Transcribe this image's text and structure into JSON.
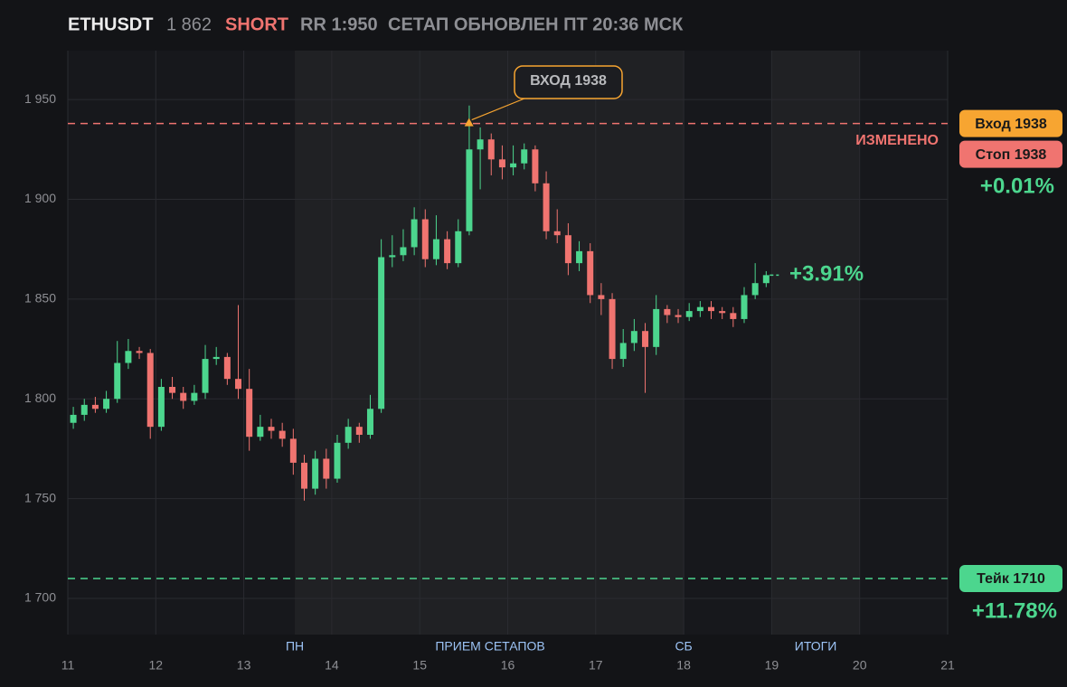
{
  "header": {
    "symbol": "ETHUSDT",
    "price": "1 862",
    "side": "SHORT",
    "rr": "RR 1:950",
    "status": "СЕТАП ОБНОВЛЕН ПТ 20:36 МСК"
  },
  "chart_data": {
    "type": "candlestick",
    "up_color": "#4cd68e",
    "down_color": "#f07470",
    "xlim": [
      11,
      21
    ],
    "xticks": [
      11,
      12,
      13,
      14,
      15,
      16,
      17,
      18,
      19,
      20,
      21
    ],
    "ylim": [
      1682.8,
      1974.5
    ],
    "yticks": [
      {
        "value": 1700,
        "label": "1 700"
      },
      {
        "value": 1750,
        "label": "1 750"
      },
      {
        "value": 1800,
        "label": "1 800"
      },
      {
        "value": 1850,
        "label": "1 850"
      },
      {
        "value": 1900,
        "label": "1 900"
      },
      {
        "value": 1950,
        "label": "1 950"
      }
    ],
    "grid": true,
    "shaded": [
      [
        13.58,
        18
      ],
      [
        19,
        20
      ]
    ],
    "sessions": [
      {
        "label": "ПН",
        "x": 13.58
      },
      {
        "label": "ПРИЕМ СЕТАПОВ",
        "x": 15.8
      },
      {
        "label": "СБ",
        "x": 18
      },
      {
        "label": "ИТОГИ",
        "x": 19.5
      }
    ],
    "x": [
      11.0625,
      11.1875,
      11.3125,
      11.4375,
      11.5625,
      11.6875,
      11.8125,
      11.9375,
      12.0625,
      12.1875,
      12.3125,
      12.4375,
      12.5625,
      12.6875,
      12.8125,
      12.9375,
      13.0625,
      13.1875,
      13.3125,
      13.4375,
      13.5625,
      13.6875,
      13.8125,
      13.9375,
      14.0625,
      14.1875,
      14.3125,
      14.4375,
      14.5625,
      14.6875,
      14.8125,
      14.9375,
      15.0625,
      15.1875,
      15.3125,
      15.4375,
      15.5625,
      15.6875,
      15.8125,
      15.9375,
      16.0625,
      16.1875,
      16.3125,
      16.4375,
      16.5625,
      16.6875,
      16.8125,
      16.9375,
      17.0625,
      17.1875,
      17.3125,
      17.4375,
      17.5625,
      17.6875,
      17.8125,
      17.9375,
      18.0625,
      18.1875,
      18.3125,
      18.4375,
      18.5625,
      18.6875,
      18.8125,
      18.9375
    ],
    "open": [
      1788,
      1792,
      1797,
      1795,
      1800,
      1818,
      1824,
      1823,
      1786,
      1806,
      1803,
      1799,
      1803,
      1820,
      1821,
      1810,
      1805,
      1781,
      1786,
      1784,
      1780,
      1768,
      1755,
      1770,
      1760,
      1778,
      1786,
      1782,
      1795,
      1871,
      1872,
      1876,
      1890,
      1870,
      1880,
      1868,
      1884,
      1925,
      1930,
      1920,
      1916,
      1918,
      1925,
      1908,
      1884,
      1882,
      1868,
      1874,
      1852,
      1850,
      1820,
      1828,
      1834,
      1826,
      1845,
      1842,
      1841,
      1844,
      1846,
      1844,
      1843,
      1840,
      1852,
      1858
    ],
    "high": [
      1796,
      1800,
      1801,
      1804,
      1829,
      1830,
      1826,
      1825,
      1810,
      1811,
      1806,
      1807,
      1827,
      1826,
      1823,
      1847,
      1815,
      1792,
      1790,
      1788,
      1785,
      1772,
      1774,
      1775,
      1782,
      1790,
      1788,
      1802,
      1880,
      1882,
      1885,
      1896,
      1895,
      1892,
      1884,
      1890,
      1947,
      1936,
      1933,
      1927,
      1927,
      1928,
      1927,
      1914,
      1895,
      1888,
      1879,
      1878,
      1858,
      1853,
      1835,
      1840,
      1838,
      1852,
      1847,
      1845,
      1848,
      1849,
      1849,
      1846,
      1846,
      1856,
      1868,
      1864
    ],
    "low": [
      1785,
      1789,
      1793,
      1793,
      1798,
      1815,
      1820,
      1780,
      1784,
      1800,
      1795,
      1797,
      1800,
      1817,
      1807,
      1800,
      1774,
      1779,
      1780,
      1776,
      1762,
      1749,
      1752,
      1755,
      1758,
      1775,
      1778,
      1780,
      1793,
      1866,
      1869,
      1872,
      1866,
      1867,
      1865,
      1866,
      1882,
      1905,
      1912,
      1910,
      1912,
      1915,
      1904,
      1880,
      1878,
      1862,
      1864,
      1848,
      1842,
      1815,
      1816,
      1824,
      1803,
      1822,
      1838,
      1838,
      1839,
      1841,
      1840,
      1840,
      1836,
      1838,
      1850,
      1856
    ],
    "close": [
      1792,
      1797,
      1795,
      1800,
      1818,
      1824,
      1823,
      1786,
      1806,
      1803,
      1799,
      1803,
      1820,
      1821,
      1810,
      1805,
      1781,
      1786,
      1784,
      1780,
      1768,
      1755,
      1770,
      1760,
      1778,
      1786,
      1782,
      1795,
      1871,
      1872,
      1876,
      1890,
      1870,
      1880,
      1868,
      1884,
      1925,
      1930,
      1920,
      1916,
      1918,
      1925,
      1908,
      1884,
      1882,
      1868,
      1874,
      1852,
      1850,
      1820,
      1828,
      1834,
      1826,
      1845,
      1842,
      1841,
      1844,
      1846,
      1844,
      1843,
      1840,
      1852,
      1858,
      1862
    ],
    "callout": {
      "label": "ВХОД 1938",
      "x": 15.56,
      "y": 1938
    },
    "last": {
      "value": 1862,
      "change": "+3.91%"
    },
    "levels": [
      {
        "label": "Вход 1938",
        "value": 1938,
        "color": "#f7a531"
      },
      {
        "label": "Стоп 1938",
        "value": 1938,
        "color": "#f07470",
        "note": "ИЗМЕНЕНО",
        "change": "+0.01%"
      },
      {
        "label": "Тейк 1710",
        "value": 1710,
        "color": "#4cd68e",
        "change": "+11.78%"
      }
    ]
  }
}
